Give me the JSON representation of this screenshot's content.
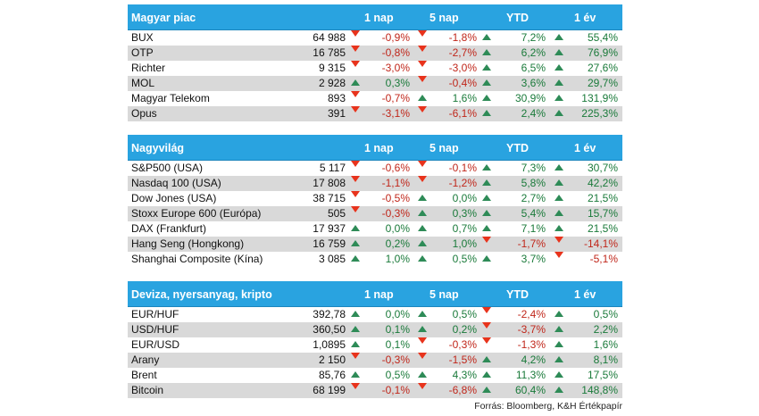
{
  "columns": [
    "1 nap",
    "5 nap",
    "YTD",
    "1 év"
  ],
  "sections": [
    {
      "title": "Magyar piac",
      "rows": [
        {
          "name": "BUX",
          "value": "64 988",
          "d1": "-0,9%",
          "d5": "-1,8%",
          "ytd": "7,2%",
          "y1": "55,4%"
        },
        {
          "name": "OTP",
          "value": "16 785",
          "d1": "-0,8%",
          "d5": "-2,7%",
          "ytd": "6,2%",
          "y1": "76,9%"
        },
        {
          "name": "Richter",
          "value": "9 315",
          "d1": "-3,0%",
          "d5": "-3,0%",
          "ytd": "6,5%",
          "y1": "27,6%"
        },
        {
          "name": "MOL",
          "value": "2 928",
          "d1": "0,3%",
          "d5": "-0,4%",
          "ytd": "3,6%",
          "y1": "29,7%"
        },
        {
          "name": "Magyar Telekom",
          "value": "893",
          "d1": "-0,7%",
          "d5": "1,6%",
          "ytd": "30,9%",
          "y1": "131,9%"
        },
        {
          "name": "Opus",
          "value": "391",
          "d1": "-3,1%",
          "d5": "-6,1%",
          "ytd": "2,4%",
          "y1": "225,3%"
        }
      ]
    },
    {
      "title": "Nagyvilág",
      "rows": [
        {
          "name": "S&P500 (USA)",
          "value": "5 117",
          "d1": "-0,6%",
          "d5": "-0,1%",
          "ytd": "7,3%",
          "y1": "30,7%"
        },
        {
          "name": "Nasdaq 100 (USA)",
          "value": "17 808",
          "d1": "-1,1%",
          "d5": "-1,2%",
          "ytd": "5,8%",
          "y1": "42,2%"
        },
        {
          "name": "Dow Jones (USA)",
          "value": "38 715",
          "d1": "-0,5%",
          "d5": "0,0%",
          "ytd": "2,7%",
          "y1": "21,5%"
        },
        {
          "name": "Stoxx Europe 600 (Európa)",
          "value": "505",
          "d1": "-0,3%",
          "d5": "0,3%",
          "ytd": "5,4%",
          "y1": "15,7%"
        },
        {
          "name": "DAX (Frankfurt)",
          "value": "17 937",
          "d1": "0,0%",
          "d5": "0,7%",
          "ytd": "7,1%",
          "y1": "21,5%"
        },
        {
          "name": "Hang Seng (Hongkong)",
          "value": "16 759",
          "d1": "0,2%",
          "d5": "1,0%",
          "ytd": "-1,7%",
          "y1": "-14,1%"
        },
        {
          "name": "Shanghai Composite (Kína)",
          "value": "3 085",
          "d1": "1,0%",
          "d5": "0,5%",
          "ytd": "3,7%",
          "y1": "-5,1%"
        }
      ]
    },
    {
      "title": "Deviza, nyersanyag, kripto",
      "rows": [
        {
          "name": "EUR/HUF",
          "value": "392,78",
          "d1": "0,0%",
          "d5": "0,5%",
          "ytd": "-2,4%",
          "y1": "0,5%"
        },
        {
          "name": "USD/HUF",
          "value": "360,50",
          "d1": "0,1%",
          "d5": "0,2%",
          "ytd": "-3,7%",
          "y1": "2,2%"
        },
        {
          "name": "EUR/USD",
          "value": "1,0895",
          "d1": "0,1%",
          "d5": "-0,3%",
          "ytd": "-1,3%",
          "y1": "1,6%"
        },
        {
          "name": "Arany",
          "value": "2 150",
          "d1": "-0,3%",
          "d5": "-1,5%",
          "ytd": "4,2%",
          "y1": "8,1%"
        },
        {
          "name": "Brent",
          "value": "85,76",
          "d1": "0,5%",
          "d5": "4,3%",
          "ytd": "11,3%",
          "y1": "17,5%"
        },
        {
          "name": "Bitcoin",
          "value": "68 199",
          "d1": "-0,1%",
          "d5": "-6,8%",
          "ytd": "60,4%",
          "y1": "148,8%"
        }
      ]
    }
  ],
  "source": "Forrás: Bloomberg, K&H Értékpapír",
  "colors": {
    "header": "#29a3e0",
    "up": "#2e8b57",
    "down": "#e8331c",
    "alt_row": "#d9d9d9"
  }
}
